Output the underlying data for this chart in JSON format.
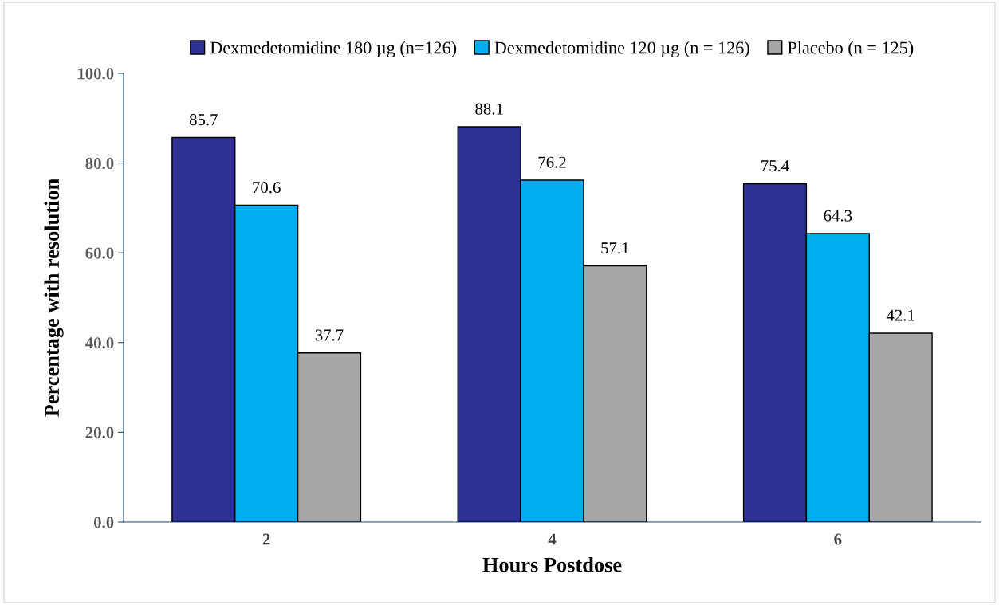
{
  "chart_data": {
    "type": "bar",
    "xlabel": "Hours Postdose",
    "ylabel": "Percentage with resolution",
    "categories": [
      "2",
      "4",
      "6"
    ],
    "series": [
      {
        "name": "Dexmedetomidine 180 µg (n=126)",
        "color": "#2e3192",
        "values": [
          85.7,
          88.1,
          75.4
        ]
      },
      {
        "name": "Dexmedetomidine 120 µg (n = 126)",
        "color": "#00aeef",
        "values": [
          70.6,
          76.2,
          64.3
        ]
      },
      {
        "name": "Placebo (n = 125)",
        "color": "#a6a6a6",
        "values": [
          37.7,
          57.1,
          42.1
        ]
      }
    ],
    "ylim": [
      0,
      100
    ],
    "yticks": [
      {
        "value": 0,
        "label": "0.0"
      },
      {
        "value": 20,
        "label": "20.0"
      },
      {
        "value": 40,
        "label": "40.0"
      },
      {
        "value": 60,
        "label": "60.0"
      },
      {
        "value": 80,
        "label": "80.0"
      },
      {
        "value": 100,
        "label": "100.0"
      }
    ],
    "data_labels": true,
    "legend": "top",
    "grid": false
  }
}
